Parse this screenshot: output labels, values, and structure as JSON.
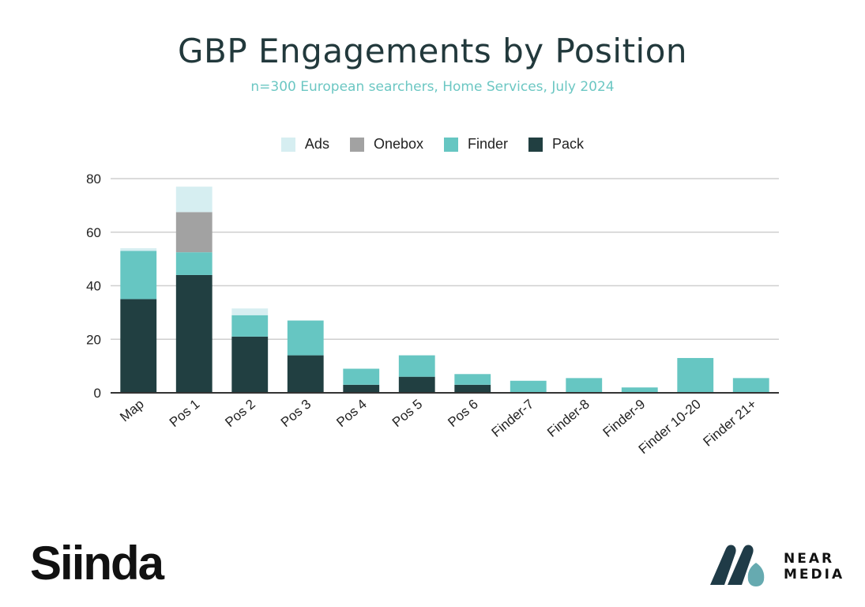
{
  "title": "GBP Engagements by Position",
  "subtitle": "n=300 European searchers, Home Services, July 2024",
  "legend": [
    {
      "label": "Ads",
      "color": "#d6eef1"
    },
    {
      "label": "Onebox",
      "color": "#a2a2a2"
    },
    {
      "label": "Finder",
      "color": "#66c6c2"
    },
    {
      "label": "Pack",
      "color": "#213f41"
    }
  ],
  "chart_data": {
    "type": "bar",
    "stacked": true,
    "title": "GBP Engagements by Position",
    "subtitle": "n=300 European searchers, Home Services, July 2024",
    "xlabel": "",
    "ylabel": "",
    "ylim": [
      0,
      80
    ],
    "yticks": [
      0,
      20,
      40,
      60,
      80
    ],
    "grid": true,
    "legend_position": "top-center",
    "categories": [
      "Map",
      "Pos 1",
      "Pos 2",
      "Pos 3",
      "Pos 4",
      "Pos 5",
      "Pos 6",
      "Finder-7",
      "Finder-8",
      "Finder-9",
      "Finder 10-20",
      "Finder 21+"
    ],
    "series": [
      {
        "name": "Pack",
        "color": "#213f41",
        "values": [
          35,
          44,
          21,
          14,
          3,
          6,
          3,
          0,
          0,
          0,
          0,
          0
        ]
      },
      {
        "name": "Finder",
        "color": "#66c6c2",
        "values": [
          18,
          8.5,
          8,
          13,
          6,
          8,
          4,
          4.5,
          5.5,
          2,
          13,
          5.5
        ]
      },
      {
        "name": "Onebox",
        "color": "#a2a2a2",
        "values": [
          0,
          15,
          0,
          0,
          0,
          0,
          0,
          0,
          0,
          0,
          0,
          0
        ]
      },
      {
        "name": "Ads",
        "color": "#d6eef1",
        "values": [
          1,
          9.5,
          2.5,
          0,
          0,
          0,
          0,
          0,
          0,
          0,
          0,
          0
        ]
      }
    ]
  },
  "logos": {
    "sinda": "Siinda",
    "near_line1": "NEAR",
    "near_line2": "MEDIA"
  }
}
